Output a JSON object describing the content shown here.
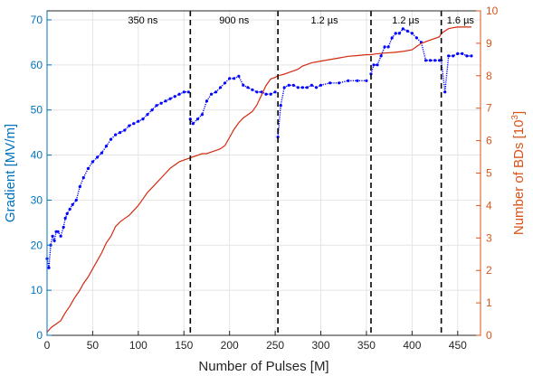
{
  "chart_data": {
    "type": "line",
    "title": "",
    "xlabel": "Number of Pulses [M]",
    "ylabel_left": "Gradient [MV/m]",
    "ylabel_right_prefix": "Number of BDs [10",
    "ylabel_right_sup": "3",
    "ylabel_right_suffix": "]",
    "xlim": [
      0,
      475
    ],
    "ylim_left": [
      0,
      72
    ],
    "ylim_right": [
      0,
      10
    ],
    "x_ticks": [
      0,
      50,
      100,
      150,
      200,
      250,
      300,
      350,
      400,
      450
    ],
    "y_left_ticks": [
      0,
      10,
      20,
      30,
      40,
      50,
      60,
      70
    ],
    "y_right_ticks": [
      0,
      1,
      2,
      3,
      4,
      5,
      6,
      7,
      8,
      9,
      10
    ],
    "grid": true,
    "colors": {
      "gradient": "#0000ff",
      "breakdowns": "#d42a10",
      "left_axis": "#0072bd",
      "right_axis": "#d95319"
    },
    "phase_dividers": [
      157,
      253,
      355,
      432
    ],
    "phases": [
      {
        "label": "350 ns",
        "x": 105
      },
      {
        "label": "900 ns",
        "x": 205
      },
      {
        "label": "1.2 µs",
        "x": 304
      },
      {
        "label": "1.2 µs",
        "x": 393
      },
      {
        "label": "1.6 µs",
        "x": 453
      }
    ],
    "series": [
      {
        "name": "",
        "axis": "left",
        "style": "scatter",
        "x": [
          0,
          2,
          4,
          6,
          8,
          10,
          12,
          15,
          18,
          20,
          22,
          25,
          28,
          32,
          36,
          40,
          45,
          50,
          55,
          60,
          65,
          70,
          75,
          80,
          85,
          90,
          95,
          100,
          105,
          110,
          115,
          120,
          125,
          130,
          135,
          140,
          145,
          150,
          155,
          157,
          160,
          165,
          170,
          175,
          180,
          185,
          190,
          195,
          200,
          205,
          210,
          215,
          220,
          225,
          230,
          235,
          240,
          245,
          250,
          253,
          256,
          260,
          265,
          270,
          275,
          280,
          285,
          290,
          295,
          300,
          310,
          320,
          330,
          340,
          350,
          355,
          358,
          362,
          366,
          370,
          374,
          378,
          382,
          386,
          390,
          395,
          400,
          405,
          410,
          415,
          420,
          425,
          430,
          432,
          436,
          440,
          445,
          450,
          455,
          460,
          465
        ],
        "values": [
          17,
          15,
          20,
          22,
          21,
          23,
          23,
          22,
          24,
          26,
          27,
          28,
          29,
          30,
          33,
          35,
          37,
          38.5,
          39.5,
          40.5,
          42,
          43.5,
          44.5,
          45,
          45.5,
          46.5,
          47,
          47.5,
          48,
          49,
          50,
          51,
          51.5,
          52,
          52.5,
          53,
          53.5,
          54,
          54,
          48,
          47,
          48,
          49,
          52,
          53.5,
          54,
          55,
          56,
          57,
          57,
          57.5,
          55.5,
          55,
          54.5,
          54,
          54,
          53.5,
          53.5,
          54,
          44,
          51,
          55,
          55.5,
          55.5,
          55,
          55,
          55,
          55.5,
          55,
          55.5,
          56,
          56,
          56.5,
          56.5,
          56.5,
          58,
          60,
          60,
          62,
          64,
          64,
          66,
          67,
          67,
          68,
          67.5,
          67,
          66,
          65,
          61,
          61,
          61,
          61,
          61,
          54,
          62,
          62,
          62.5,
          62.5,
          62,
          62
        ]
      },
      {
        "name": "",
        "axis": "right",
        "style": "line",
        "x": [
          0,
          5,
          10,
          15,
          20,
          25,
          30,
          35,
          40,
          45,
          50,
          55,
          60,
          65,
          70,
          75,
          80,
          85,
          90,
          95,
          100,
          105,
          110,
          115,
          120,
          125,
          130,
          135,
          140,
          145,
          150,
          155,
          160,
          165,
          170,
          175,
          180,
          185,
          190,
          195,
          200,
          205,
          210,
          215,
          220,
          225,
          230,
          235,
          240,
          245,
          250,
          253,
          256,
          260,
          265,
          270,
          275,
          280,
          290,
          300,
          310,
          320,
          330,
          340,
          350,
          355,
          360,
          370,
          380,
          390,
          400,
          405,
          410,
          420,
          430,
          432,
          436,
          440,
          445,
          450,
          460,
          465
        ],
        "values": [
          0.1,
          0.25,
          0.35,
          0.45,
          0.7,
          0.9,
          1.15,
          1.35,
          1.6,
          1.8,
          2.05,
          2.3,
          2.55,
          2.85,
          3.05,
          3.35,
          3.5,
          3.6,
          3.7,
          3.85,
          4.0,
          4.2,
          4.4,
          4.55,
          4.7,
          4.85,
          5.0,
          5.15,
          5.25,
          5.35,
          5.4,
          5.45,
          5.5,
          5.55,
          5.6,
          5.6,
          5.65,
          5.7,
          5.75,
          5.85,
          6.1,
          6.35,
          6.55,
          6.7,
          6.8,
          6.9,
          7.1,
          7.4,
          7.7,
          7.9,
          7.95,
          8.0,
          8.02,
          8.05,
          8.1,
          8.15,
          8.2,
          8.3,
          8.4,
          8.45,
          8.5,
          8.55,
          8.6,
          8.62,
          8.65,
          8.65,
          8.67,
          8.7,
          8.72,
          8.75,
          8.8,
          8.9,
          9.0,
          9.1,
          9.2,
          9.3,
          9.38,
          9.45,
          9.48,
          9.5,
          9.5,
          9.5
        ]
      }
    ]
  }
}
